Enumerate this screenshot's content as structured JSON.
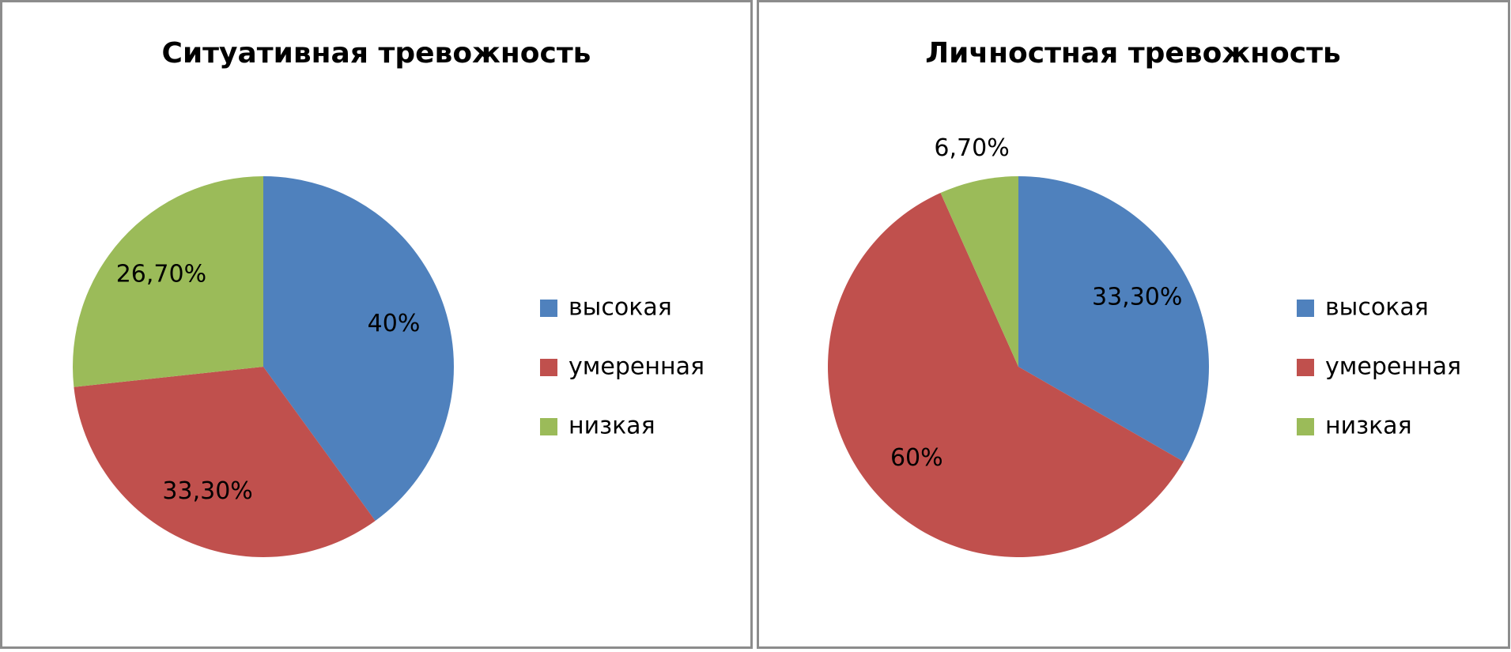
{
  "chart_data": [
    {
      "type": "pie",
      "title": "Ситуативная тревожность",
      "categories": [
        "высокая",
        "умеренная",
        "низкая"
      ],
      "values": [
        40,
        33.3,
        26.7
      ],
      "value_labels": [
        "40%",
        "33,30%",
        "26,70%"
      ],
      "colors": [
        "#4f81bd",
        "#c0504d",
        "#9bbb59"
      ]
    },
    {
      "type": "pie",
      "title": "Личностная тревожность",
      "categories": [
        "высокая",
        "умеренная",
        "низкая"
      ],
      "values": [
        33.3,
        60,
        6.7
      ],
      "value_labels": [
        "33,30%",
        "60%",
        "6,70%"
      ],
      "colors": [
        "#4f81bd",
        "#c0504d",
        "#9bbb59"
      ]
    }
  ]
}
